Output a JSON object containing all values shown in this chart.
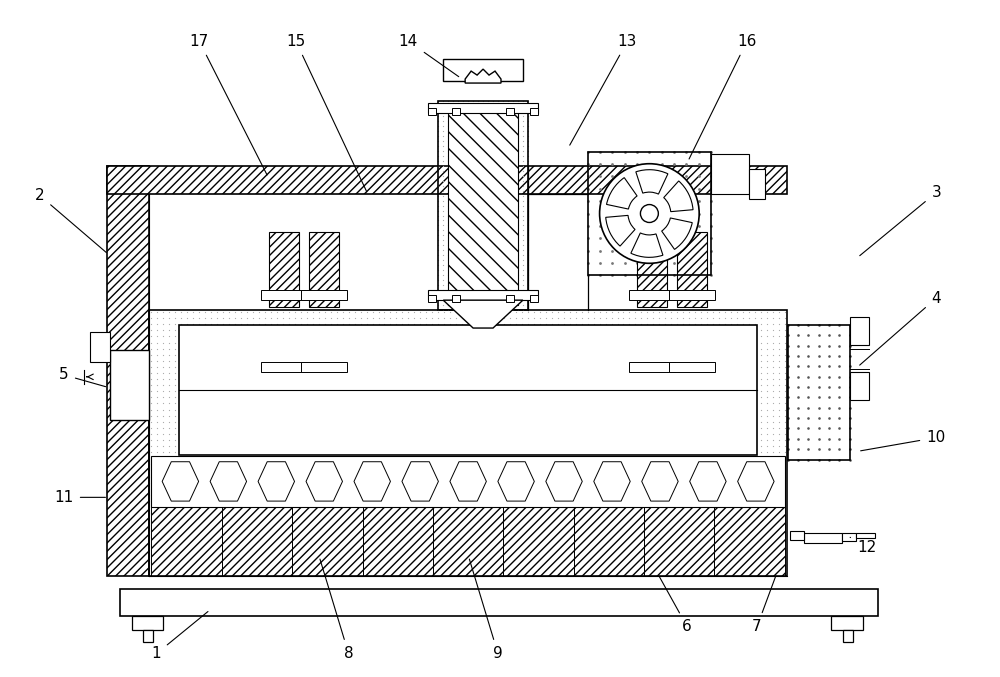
{
  "figure_width": 10.0,
  "figure_height": 6.77,
  "dpi": 100,
  "bg_color": "#ffffff",
  "lc": "#000000",
  "annotations": [
    [
      "1",
      155,
      655,
      210,
      610
    ],
    [
      "2",
      38,
      195,
      108,
      255
    ],
    [
      "3",
      938,
      192,
      858,
      258
    ],
    [
      "4",
      938,
      298,
      858,
      368
    ],
    [
      "5",
      62,
      375,
      108,
      388
    ],
    [
      "6",
      688,
      628,
      658,
      574
    ],
    [
      "7",
      758,
      628,
      778,
      574
    ],
    [
      "8",
      348,
      655,
      318,
      556
    ],
    [
      "9",
      498,
      655,
      468,
      556
    ],
    [
      "10",
      938,
      438,
      858,
      452
    ],
    [
      "11",
      62,
      498,
      108,
      498
    ],
    [
      "12",
      868,
      548,
      848,
      536
    ],
    [
      "13",
      628,
      40,
      568,
      148
    ],
    [
      "14",
      408,
      40,
      462,
      78
    ],
    [
      "15",
      295,
      40,
      368,
      195
    ],
    [
      "16",
      748,
      40,
      688,
      162
    ],
    [
      "17",
      198,
      40,
      268,
      178
    ]
  ]
}
